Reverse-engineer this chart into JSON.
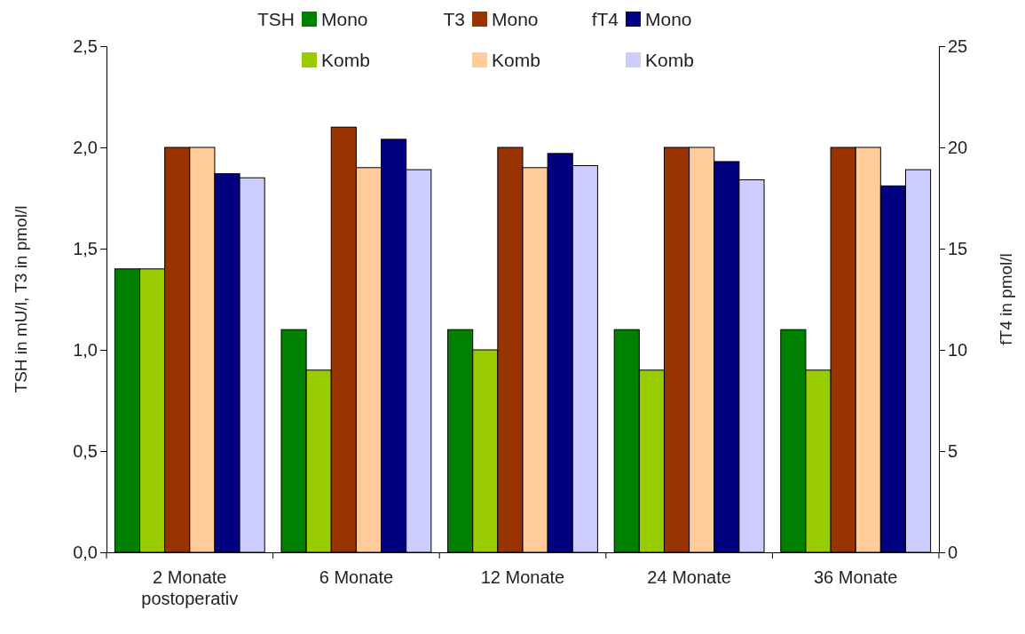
{
  "chart_data": {
    "type": "bar",
    "ylabel": "TSH in mU/l, T3 in pmol/l",
    "y2label": "fT4 in pmol/l",
    "categories": [
      "2 Monate postoperativ",
      "6 Monate",
      "12 Monate",
      "24 Monate",
      "36 Monate"
    ],
    "ylim": [
      0,
      2.5
    ],
    "yticks": [
      {
        "value": 0,
        "label": "0,0"
      },
      {
        "value": 0.5,
        "label": "0,5"
      },
      {
        "value": 1,
        "label": "1,0"
      },
      {
        "value": 1.5,
        "label": "1,5"
      },
      {
        "value": 2,
        "label": "2,0"
      },
      {
        "value": 2.5,
        "label": "2,5"
      }
    ],
    "y2lim": [
      0,
      25
    ],
    "y2ticks": [
      0,
      5,
      10,
      15,
      20,
      25
    ],
    "grid": false,
    "legend": "top",
    "annotations": [
      "TSH",
      "T3",
      "fT4"
    ],
    "series": [
      {
        "name": "Mono",
        "color": "#008000",
        "values": [
          1.4,
          1.1,
          1.1,
          1.1,
          1.1
        ]
      },
      {
        "name": "Komb",
        "color": "#99cc00",
        "values": [
          1.4,
          0.9,
          1.0,
          0.9,
          0.9
        ]
      },
      {
        "name": "Mono",
        "color": "#993300",
        "values": [
          2.0,
          2.1,
          2.0,
          2.0,
          2.0
        ]
      },
      {
        "name": "Komb",
        "color": "#ffcc99",
        "values": [
          2.0,
          1.9,
          1.9,
          2.0,
          2.0
        ]
      },
      {
        "name": "Mono",
        "color": "#000080",
        "axis": "y2",
        "values": [
          18.7,
          20.4,
          19.7,
          19.3,
          18.1
        ]
      },
      {
        "name": "Komb",
        "color": "#ccccff",
        "axis": "y2",
        "values": [
          18.5,
          18.9,
          19.1,
          18.4,
          18.9
        ]
      }
    ]
  }
}
